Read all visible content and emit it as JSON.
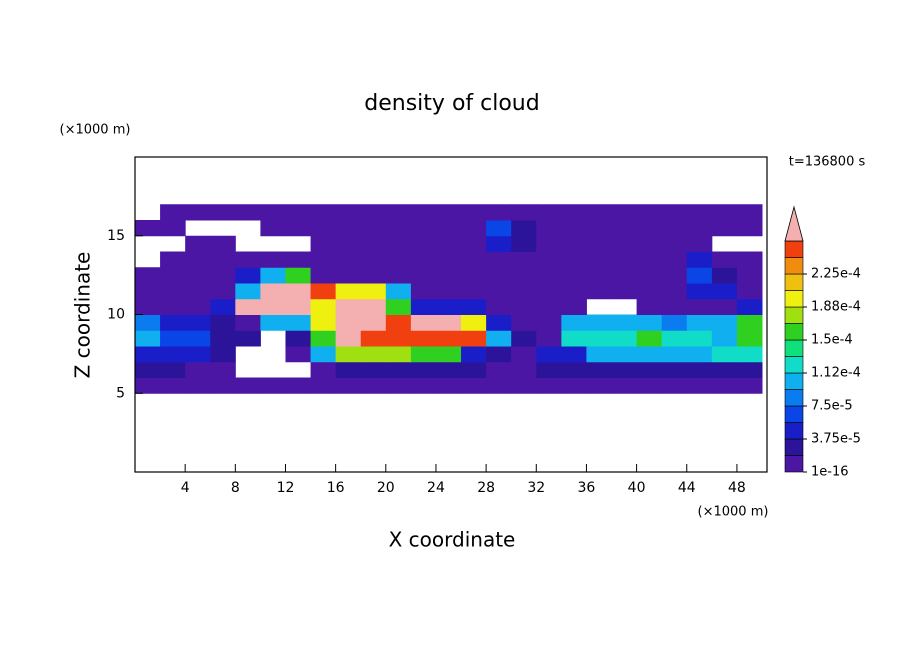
{
  "chart_data": {
    "type": "contour",
    "title": "density of cloud",
    "xlabel": "X coordinate",
    "ylabel": "Z coordinate",
    "x_unit": "(×1000 m)",
    "y_unit": "(×1000 m)",
    "annotation": "t=136800 s",
    "xlim": [
      0,
      50
    ],
    "ylim": [
      0,
      20
    ],
    "xticks": [
      4,
      8,
      12,
      16,
      20,
      24,
      28,
      32,
      36,
      40,
      44,
      48
    ],
    "yticks": [
      5,
      10,
      15
    ],
    "x": [
      1,
      3,
      5,
      7,
      9,
      11,
      13,
      15,
      17,
      19,
      21,
      23,
      25,
      27,
      29,
      31,
      33,
      35,
      37,
      39,
      41,
      43,
      45,
      47,
      49
    ],
    "y": [
      5.5,
      6.5,
      7.5,
      8.5,
      9.5,
      10.5,
      11.5,
      12.5,
      13.5,
      14.5,
      15.5,
      16.5
    ],
    "z": [
      [
        1e-06,
        1e-06,
        1e-06,
        1e-06,
        1e-06,
        1e-06,
        1e-06,
        1e-06,
        1e-06,
        1e-06,
        1e-06,
        1e-06,
        1e-06,
        1e-06,
        1e-06,
        1e-06,
        1e-06,
        1e-06,
        1e-06,
        1e-06,
        1e-06,
        1e-06,
        1e-06,
        1e-06,
        1e-06
      ],
      [
        2e-05,
        2e-05,
        1e-06,
        1e-06,
        null,
        null,
        null,
        1e-06,
        2e-05,
        3e-05,
        3e-05,
        3e-05,
        2e-05,
        2e-05,
        1e-06,
        1e-06,
        2e-05,
        3e-05,
        3e-05,
        3e-05,
        2e-05,
        2e-05,
        3e-05,
        3e-05,
        3e-05
      ],
      [
        5e-05,
        5e-05,
        4e-05,
        2e-05,
        null,
        null,
        1e-06,
        0.0001,
        0.00018,
        0.00018,
        0.00018,
        0.00015,
        0.00015,
        5e-05,
        2e-05,
        1e-06,
        4e-05,
        4e-05,
        0.0001,
        0.0001,
        0.0001,
        0.0001,
        0.0001,
        0.00012,
        0.00012
      ],
      [
        0.0001,
        6e-05,
        6e-05,
        3e-05,
        2e-05,
        null,
        2e-05,
        0.00015,
        0.0003,
        0.00025,
        0.00025,
        0.00025,
        0.00025,
        0.00025,
        0.0001,
        2e-05,
        1e-06,
        0.00012,
        0.00012,
        0.00012,
        0.00015,
        0.00012,
        0.00012,
        0.0001,
        0.00015
      ],
      [
        8e-05,
        5e-05,
        5e-05,
        2e-05,
        1e-06,
        0.0001,
        0.0001,
        0.0002,
        0.0003,
        0.0003,
        0.00025,
        0.0003,
        0.0003,
        0.0002,
        5e-05,
        1e-06,
        1e-06,
        0.0001,
        0.0001,
        0.0001,
        0.0001,
        8e-05,
        0.0001,
        0.0001,
        0.00015
      ],
      [
        1e-06,
        1e-06,
        1e-06,
        5e-05,
        0.0003,
        0.0003,
        0.0003,
        0.0002,
        0.0003,
        0.0003,
        0.00015,
        5e-05,
        5e-05,
        5e-05,
        1e-06,
        1e-06,
        1e-06,
        1e-06,
        null,
        null,
        1e-06,
        1e-06,
        1e-06,
        1e-06,
        5e-05
      ],
      [
        1e-06,
        1e-06,
        1e-06,
        1e-06,
        0.0001,
        0.0003,
        0.0003,
        0.00025,
        0.0002,
        0.0002,
        0.0001,
        1e-06,
        1e-06,
        1e-06,
        1e-06,
        1e-06,
        1e-06,
        1e-06,
        1e-06,
        1e-06,
        1e-06,
        1e-06,
        5e-05,
        5e-05,
        1e-06
      ],
      [
        1e-06,
        1e-06,
        1e-06,
        1e-06,
        5e-05,
        0.0001,
        0.00015,
        1e-06,
        1e-06,
        1e-06,
        1e-06,
        1e-06,
        1e-06,
        1e-06,
        1e-06,
        1e-06,
        1e-06,
        1e-06,
        1e-06,
        1e-06,
        1e-06,
        1e-06,
        6e-05,
        2e-05,
        1e-06
      ],
      [
        null,
        1e-06,
        1e-06,
        1e-06,
        1e-06,
        1e-06,
        1e-06,
        1e-06,
        1e-06,
        1e-06,
        1e-06,
        1e-06,
        1e-06,
        1e-06,
        1e-06,
        1e-06,
        1e-06,
        1e-06,
        1e-06,
        1e-06,
        1e-06,
        1e-06,
        4e-05,
        1e-06,
        1e-06
      ],
      [
        null,
        null,
        1e-06,
        1e-06,
        null,
        null,
        null,
        1e-06,
        1e-06,
        1e-06,
        1e-06,
        1e-06,
        1e-06,
        1e-06,
        4e-05,
        2e-05,
        1e-06,
        1e-06,
        1e-06,
        1e-06,
        1e-06,
        1e-06,
        1e-06,
        null,
        null
      ],
      [
        1e-06,
        1e-06,
        null,
        null,
        null,
        1e-06,
        1e-06,
        1e-06,
        1e-06,
        1e-06,
        1e-06,
        1e-06,
        1e-06,
        1e-06,
        6e-05,
        3e-05,
        1e-06,
        1e-06,
        1e-06,
        1e-06,
        1e-06,
        1e-06,
        1e-06,
        1e-06,
        1e-06
      ],
      [
        null,
        1e-06,
        1e-06,
        1e-06,
        1e-06,
        1e-06,
        1e-06,
        1e-06,
        1e-06,
        1e-06,
        1e-06,
        1e-06,
        1e-06,
        1e-06,
        1e-06,
        1e-06,
        1e-06,
        1e-06,
        1e-06,
        1e-06,
        1e-06,
        1e-06,
        1e-06,
        1e-06,
        1e-06
      ]
    ],
    "levels": [
      1e-16,
      1.875e-05,
      3.75e-05,
      5.625e-05,
      7.5e-05,
      9.375e-05,
      0.0001125,
      0.00013125,
      0.00015,
      0.00016875,
      0.0001875,
      0.00020625,
      0.000225,
      0.00024375,
      0.0002625
    ],
    "colors": [
      "#4c16a4",
      "#2c149a",
      "#1a1ec8",
      "#0a46e6",
      "#0a7cf0",
      "#10b0f0",
      "#10dcc8",
      "#10e07c",
      "#30d020",
      "#a0e010",
      "#f0f010",
      "#f0c010",
      "#f08c10",
      "#f04010"
    ],
    "over_color": "#f4b0b0",
    "colorbar_ticks": [
      1e-16,
      {
        "value": 3.75e-05,
        "label": "3.75e-5"
      },
      {
        "value": 7.5e-05,
        "label": "7.5e-5"
      },
      {
        "value": 0.0001125,
        "label": "1.12e-4"
      },
      {
        "value": 0.00015,
        "label": "1.5e-4"
      },
      {
        "value": 0.0001875,
        "label": "1.88e-4"
      },
      {
        "value": 0.000225,
        "label": "2.25e-4"
      }
    ]
  }
}
